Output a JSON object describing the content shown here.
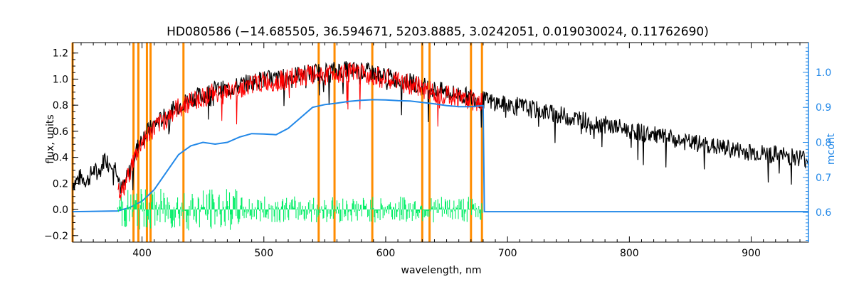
{
  "chart_data": {
    "type": "line",
    "title": "HD080586   (−14.685505, 36.594671, 5203.8885, 3.0242051, 0.019030024, 0.11762690)",
    "xlabel": "wavelength, nm",
    "ylabel": "flux, units",
    "y2label": "mcont",
    "xlim": [
      343,
      947
    ],
    "ylim": [
      -0.25,
      1.28
    ],
    "y2lim": [
      0.515,
      1.085
    ],
    "x_ticks": [
      400,
      500,
      600,
      700,
      800,
      900
    ],
    "y_ticks": [
      -0.2,
      0.0,
      0.2,
      0.4,
      0.6,
      0.8,
      1.0,
      1.2
    ],
    "y_tick_labels": [
      "−0.2",
      "0.0",
      "0.2",
      "0.4",
      "0.6",
      "0.8",
      "1.0",
      "1.2"
    ],
    "y2_ticks": [
      0.6,
      0.7,
      0.8,
      0.9,
      1.0
    ],
    "y2_tick_labels": [
      "0.6",
      "0.7",
      "0.8",
      "0.9",
      "1.0"
    ],
    "vertical_lines_nm": [
      343,
      393,
      397,
      404,
      407,
      434,
      545,
      558,
      589,
      630,
      636,
      670,
      679
    ],
    "series": [
      {
        "key": "observed",
        "color": "#000000",
        "x": [
          343,
          350,
          355,
          360,
          365,
          370,
          372,
          375,
          380,
          383,
          386,
          390,
          395,
          400,
          410,
          420,
          430,
          440,
          450,
          460,
          470,
          480,
          490,
          500,
          510,
          520,
          530,
          540,
          550,
          560,
          570,
          580,
          590,
          600,
          610,
          620,
          630,
          640,
          650,
          660,
          670,
          680,
          690,
          700,
          710,
          720,
          730,
          740,
          750,
          760,
          770,
          780,
          790,
          800,
          810,
          820,
          830,
          840,
          850,
          860,
          870,
          880,
          890,
          900,
          910,
          920,
          930,
          940,
          947
        ],
        "values": [
          0.2,
          0.25,
          0.22,
          0.3,
          0.28,
          0.42,
          0.35,
          0.38,
          0.3,
          0.15,
          0.2,
          0.3,
          0.45,
          0.55,
          0.65,
          0.72,
          0.8,
          0.85,
          0.88,
          0.92,
          0.92,
          0.95,
          0.98,
          1.0,
          1.0,
          1.02,
          1.04,
          1.05,
          1.06,
          1.07,
          1.07,
          1.06,
          1.05,
          1.02,
          1.0,
          0.98,
          0.95,
          0.92,
          0.9,
          0.88,
          0.86,
          0.84,
          0.82,
          0.8,
          0.79,
          0.77,
          0.75,
          0.73,
          0.71,
          0.69,
          0.67,
          0.65,
          0.63,
          0.61,
          0.59,
          0.57,
          0.55,
          0.53,
          0.51,
          0.5,
          0.48,
          0.47,
          0.45,
          0.44,
          0.43,
          0.42,
          0.41,
          0.4,
          0.38
        ]
      },
      {
        "key": "model",
        "color": "#ff0000",
        "x": [
          380,
          383,
          386,
          390,
          395,
          400,
          410,
          420,
          430,
          440,
          450,
          460,
          470,
          480,
          490,
          500,
          510,
          520,
          530,
          540,
          550,
          560,
          570,
          580,
          590,
          600,
          610,
          620,
          630,
          640,
          650,
          660,
          670,
          680
        ],
        "values": [
          0.18,
          0.12,
          0.18,
          0.3,
          0.42,
          0.52,
          0.62,
          0.7,
          0.78,
          0.83,
          0.86,
          0.9,
          0.9,
          0.93,
          0.96,
          0.98,
          0.98,
          1.0,
          1.02,
          1.03,
          1.04,
          1.05,
          1.05,
          1.04,
          1.03,
          1.0,
          0.98,
          0.96,
          0.93,
          0.9,
          0.88,
          0.86,
          0.84,
          0.83
        ]
      },
      {
        "key": "mcont",
        "color": "#2288e8",
        "axis": "right",
        "x": [
          343,
          380,
          390,
          400,
          410,
          420,
          430,
          440,
          450,
          460,
          470,
          480,
          490,
          500,
          510,
          520,
          530,
          540,
          550,
          560,
          570,
          580,
          590,
          600,
          610,
          620,
          630,
          640,
          650,
          660,
          670,
          680,
          681,
          700,
          800,
          900,
          947
        ],
        "values": [
          0.602,
          0.604,
          0.614,
          0.632,
          0.665,
          0.715,
          0.765,
          0.79,
          0.8,
          0.795,
          0.8,
          0.815,
          0.825,
          0.824,
          0.822,
          0.84,
          0.87,
          0.9,
          0.908,
          0.912,
          0.917,
          0.92,
          0.922,
          0.921,
          0.919,
          0.918,
          0.914,
          0.91,
          0.905,
          0.902,
          0.902,
          0.905,
          0.602,
          0.602,
          0.602,
          0.602,
          0.602
        ]
      },
      {
        "key": "residuals",
        "color": "#00ee66",
        "x": [
          380,
          400,
          420,
          440,
          460,
          480,
          500,
          520,
          540,
          560,
          580,
          600,
          620,
          640,
          660,
          680
        ],
        "values": [
          0.0,
          0.0,
          0.0,
          0.0,
          0.0,
          0.0,
          0.0,
          0.0,
          0.0,
          0.0,
          0.0,
          0.0,
          0.0,
          0.0,
          0.0,
          0.0
        ],
        "spread": 0.1
      }
    ],
    "grid": false,
    "legend": "none"
  },
  "colors": {
    "axis": "#000000",
    "right_axis": "#2288e8",
    "marker_lines": "#ff8c00"
  }
}
